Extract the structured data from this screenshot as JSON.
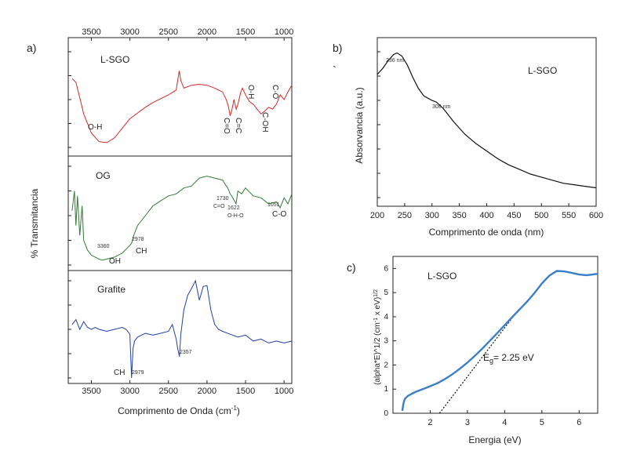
{
  "chart_data": [
    {
      "panel": "a)",
      "type": "line",
      "xlabel": "Comprimento de Onda (cm-1)",
      "xlabel_main": "Comprimento de Onda (cm",
      "xlabel_sup": "-1",
      "xlabel_end": ")",
      "ylabel": "% Transmitancia",
      "xlim": [
        3800,
        900
      ],
      "xticks": [
        "3500",
        "3000",
        "2500",
        "2000",
        "1500",
        "1000"
      ],
      "xtick_values": [
        3500,
        3000,
        2500,
        2000,
        1500,
        1000
      ],
      "series": [
        {
          "name": "L-SGO",
          "color": "#d62728",
          "x": [
            3750,
            3700,
            3650,
            3600,
            3500,
            3400,
            3300,
            3200,
            3100,
            3000,
            2900,
            2800,
            2700,
            2600,
            2500,
            2400,
            2360,
            2340,
            2300,
            2200,
            2100,
            2000,
            1900,
            1800,
            1750,
            1720,
            1700,
            1680,
            1650,
            1620,
            1600,
            1560,
            1540,
            1500,
            1450,
            1400,
            1350,
            1300,
            1250,
            1200,
            1150,
            1100,
            1050,
            1000,
            950,
            900
          ],
          "y": [
            0.72,
            0.68,
            0.52,
            0.35,
            0.15,
            0.06,
            0.05,
            0.1,
            0.2,
            0.3,
            0.36,
            0.42,
            0.47,
            0.51,
            0.55,
            0.6,
            0.8,
            0.7,
            0.62,
            0.65,
            0.66,
            0.65,
            0.62,
            0.58,
            0.5,
            0.42,
            0.33,
            0.38,
            0.5,
            0.4,
            0.45,
            0.58,
            0.62,
            0.55,
            0.48,
            0.45,
            0.4,
            0.35,
            0.38,
            0.42,
            0.4,
            0.45,
            0.55,
            0.5,
            0.58,
            0.65
          ]
        },
        {
          "name": "OG",
          "color": "#2e7d32",
          "x": [
            3750,
            3720,
            3700,
            3680,
            3650,
            3620,
            3600,
            3550,
            3500,
            3450,
            3400,
            3360,
            3300,
            3200,
            3100,
            3000,
            2978,
            2950,
            2900,
            2800,
            2700,
            2600,
            2500,
            2400,
            2300,
            2200,
            2100,
            2000,
            1900,
            1800,
            1750,
            1730,
            1700,
            1680,
            1622,
            1600,
            1550,
            1500,
            1450,
            1400,
            1300,
            1200,
            1100,
            1051,
            1000,
            950,
            900
          ],
          "y": [
            0.55,
            0.75,
            0.4,
            0.7,
            0.3,
            0.6,
            0.25,
            0.15,
            0.1,
            0.08,
            0.06,
            0.05,
            0.06,
            0.08,
            0.12,
            0.2,
            0.22,
            0.3,
            0.4,
            0.5,
            0.6,
            0.65,
            0.7,
            0.72,
            0.78,
            0.8,
            0.88,
            0.9,
            0.88,
            0.86,
            0.8,
            0.78,
            0.72,
            0.7,
            0.62,
            0.75,
            0.72,
            0.78,
            0.74,
            0.7,
            0.68,
            0.62,
            0.64,
            0.58,
            0.68,
            0.62,
            0.72
          ]
        },
        {
          "name": "Grafite",
          "color": "#1f3fa8",
          "x": [
            3750,
            3700,
            3650,
            3600,
            3550,
            3500,
            3450,
            3400,
            3300,
            3200,
            3100,
            3050,
            3000,
            2979,
            2960,
            2940,
            2900,
            2850,
            2800,
            2700,
            2600,
            2500,
            2450,
            2400,
            2380,
            2357,
            2340,
            2300,
            2250,
            2200,
            2150,
            2100,
            2070,
            2050,
            2000,
            1950,
            1900,
            1850,
            1800,
            1700,
            1600,
            1500,
            1400,
            1300,
            1200,
            1100,
            1000,
            900
          ],
          "y": [
            0.55,
            0.6,
            0.5,
            0.58,
            0.52,
            0.5,
            0.52,
            0.5,
            0.48,
            0.5,
            0.52,
            0.5,
            0.45,
            0.0,
            0.3,
            0.38,
            0.42,
            0.44,
            0.46,
            0.44,
            0.46,
            0.48,
            0.55,
            0.4,
            0.3,
            0.22,
            0.45,
            0.7,
            0.85,
            0.92,
            1.0,
            0.8,
            0.88,
            0.94,
            0.95,
            0.7,
            0.55,
            0.5,
            0.48,
            0.45,
            0.42,
            0.44,
            0.38,
            0.4,
            0.36,
            0.38,
            0.36,
            0.38
          ]
        }
      ],
      "panel_labels": [
        "L-SGO",
        "OG",
        "Grafite"
      ],
      "annotations": {
        "lsgo": [
          "O-H",
          "C=O",
          "C=C",
          "O-H",
          "C-OH",
          "C-O"
        ],
        "og": [
          "3360",
          "OH",
          "2978",
          "CH",
          "1730",
          "C=O",
          "1622",
          "O-H-O",
          "1051",
          "C-O"
        ],
        "grafite": [
          "CH",
          "2979",
          "2357"
        ]
      }
    },
    {
      "panel": "b)",
      "type": "line",
      "title": "L-SGO",
      "xlabel": "Comprimento de onda (nm)",
      "ylabel": "Absorvancia (a.u.)",
      "xlim": [
        200,
        600
      ],
      "xticks": [
        "200",
        "250",
        "300",
        "350",
        "400",
        "450",
        "500",
        "550",
        "600"
      ],
      "xtick_values": [
        200,
        250,
        300,
        350,
        400,
        450,
        500,
        550,
        600
      ],
      "x": [
        200,
        210,
        220,
        230,
        236,
        245,
        255,
        265,
        275,
        285,
        295,
        300,
        308,
        320,
        340,
        360,
        380,
        400,
        420,
        440,
        460,
        480,
        500,
        520,
        540,
        560,
        580,
        600
      ],
      "y": [
        0.86,
        0.9,
        0.95,
        0.99,
        1.0,
        0.98,
        0.92,
        0.84,
        0.77,
        0.72,
        0.7,
        0.69,
        0.68,
        0.64,
        0.55,
        0.47,
        0.41,
        0.36,
        0.31,
        0.27,
        0.24,
        0.21,
        0.19,
        0.17,
        0.15,
        0.14,
        0.13,
        0.12
      ],
      "ylim": [
        0,
        1.1
      ],
      "peak_labels": [
        "236 nm",
        "308 nm"
      ],
      "stray_mark": "`"
    },
    {
      "panel": "c)",
      "type": "line",
      "title": "L-SGO",
      "xlabel": "Energia (eV)",
      "ylabel": "(alpha*E)^1/2 (cm-1 x eV)1/2",
      "ylabel_parts": [
        "(alpha*E)^1/2 (cm",
        "-1",
        " x eV)",
        "1/2"
      ],
      "xlim": [
        1,
        6.5
      ],
      "ylim": [
        0,
        6.5
      ],
      "xticks": [
        "2",
        "3",
        "4",
        "5",
        "6"
      ],
      "xtick_values": [
        2,
        3,
        4,
        5,
        6
      ],
      "yticks": [
        "0",
        "1",
        "2",
        "3",
        "4",
        "5",
        "6"
      ],
      "ytick_values": [
        0,
        1,
        2,
        3,
        4,
        5,
        6
      ],
      "x": [
        1.25,
        1.28,
        1.32,
        1.4,
        1.6,
        1.8,
        2.0,
        2.2,
        2.4,
        2.6,
        2.8,
        3.0,
        3.2,
        3.4,
        3.6,
        3.8,
        4.0,
        4.2,
        4.4,
        4.6,
        4.8,
        5.0,
        5.2,
        5.4,
        5.6,
        5.8,
        6.0,
        6.2,
        6.5
      ],
      "y": [
        0.1,
        0.4,
        0.6,
        0.72,
        0.88,
        1.0,
        1.12,
        1.25,
        1.42,
        1.62,
        1.85,
        2.1,
        2.38,
        2.68,
        3.0,
        3.32,
        3.65,
        3.98,
        4.3,
        4.62,
        4.98,
        5.38,
        5.7,
        5.9,
        5.88,
        5.82,
        5.75,
        5.72,
        5.78
      ],
      "tangent": {
        "x": [
          2.25,
          4.4
        ],
        "y": [
          0,
          4.35
        ]
      },
      "eg_label": {
        "prefix": "E",
        "sub": "g",
        "suffix": "= 2.25 eV"
      }
    }
  ]
}
